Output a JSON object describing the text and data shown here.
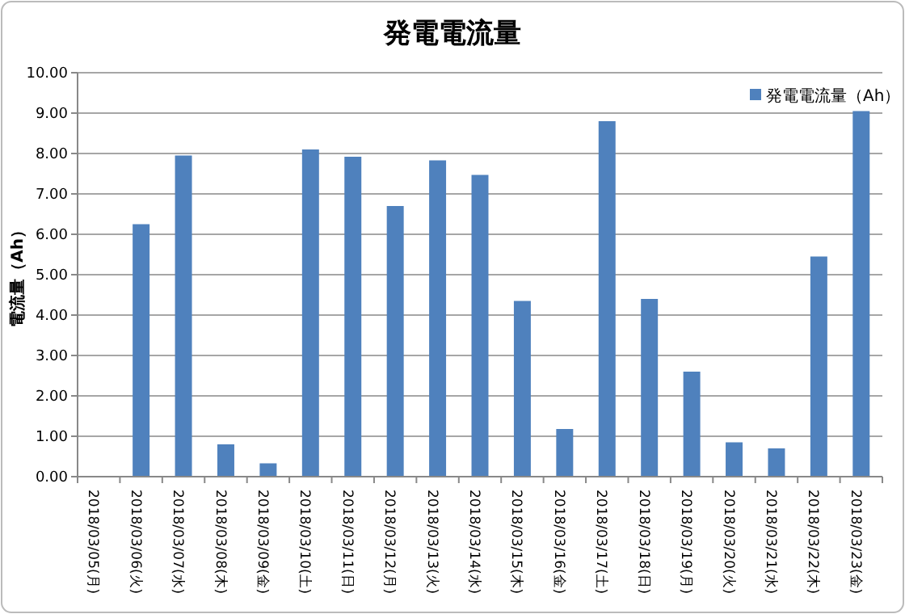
{
  "chart_data": {
    "type": "bar",
    "title": "発電電流量",
    "ylabel": "電流量（Ah）",
    "categories": [
      "2018/03/05(月)",
      "2018/03/06(火)",
      "2018/03/07(水)",
      "2018/03/08(木)",
      "2018/03/09(金)",
      "2018/03/10(土)",
      "2018/03/11(日)",
      "2018/03/12(月)",
      "2018/03/13(火)",
      "2018/03/14(水)",
      "2018/03/15(木)",
      "2018/03/16(金)",
      "2018/03/17(土)",
      "2018/03/18(日)",
      "2018/03/19(月)",
      "2018/03/20(火)",
      "2018/03/21(水)",
      "2018/03/22(木)",
      "2018/03/23(金)"
    ],
    "series": [
      {
        "name": "発電電流量（Ah）",
        "color": "#4f81bd",
        "values": [
          null,
          6.25,
          7.95,
          0.8,
          0.33,
          8.1,
          7.92,
          6.7,
          7.83,
          7.47,
          4.35,
          1.18,
          8.8,
          4.4,
          2.6,
          0.85,
          0.7,
          5.45,
          9.05
        ]
      }
    ],
    "ylim": [
      0,
      10
    ],
    "yticks": [
      {
        "value": 0,
        "label": "0.00"
      },
      {
        "value": 1,
        "label": "1.00"
      },
      {
        "value": 2,
        "label": "2.00"
      },
      {
        "value": 3,
        "label": "3.00"
      },
      {
        "value": 4,
        "label": "4.00"
      },
      {
        "value": 5,
        "label": "5.00"
      },
      {
        "value": 6,
        "label": "6.00"
      },
      {
        "value": 7,
        "label": "7.00"
      },
      {
        "value": 8,
        "label": "8.00"
      },
      {
        "value": 9,
        "label": "9.00"
      },
      {
        "value": 10,
        "label": "10.00"
      }
    ],
    "grid": "y",
    "legend": "top right"
  }
}
